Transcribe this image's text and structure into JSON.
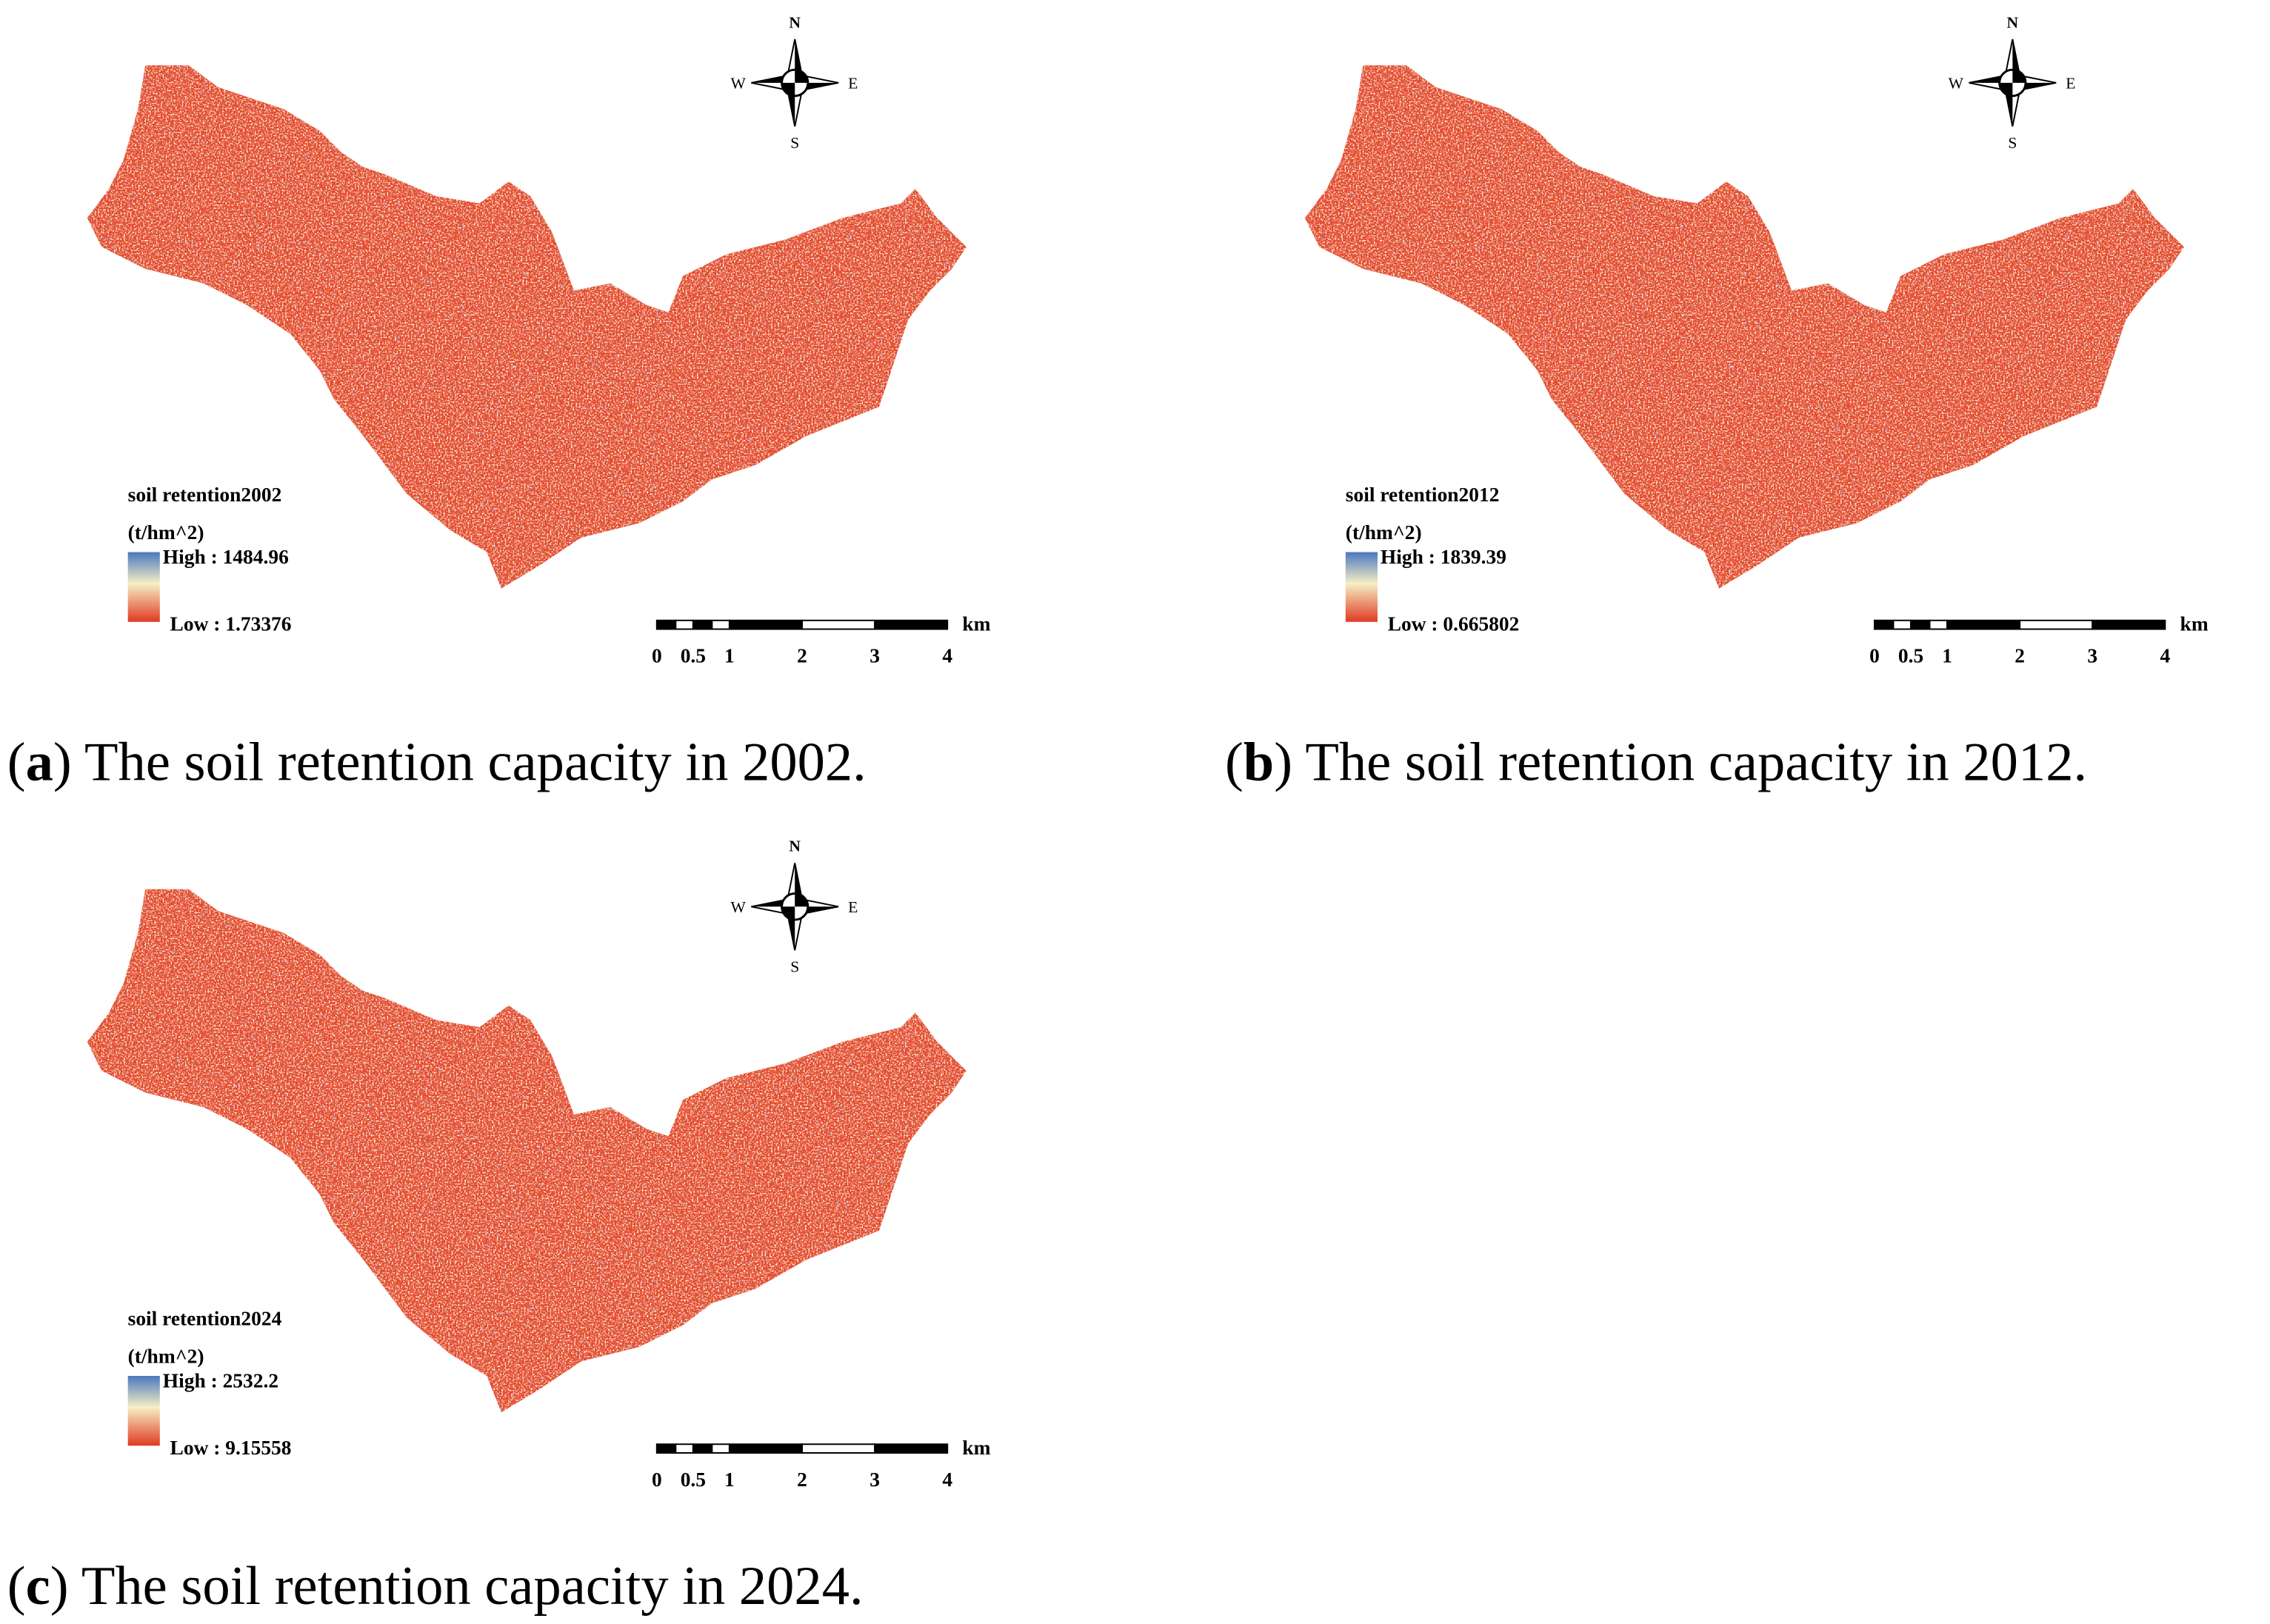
{
  "compass": {
    "n": "N",
    "s": "S",
    "w": "W",
    "e": "E"
  },
  "scale_bar": {
    "labels": [
      "0",
      "0.5",
      "1",
      "2",
      "3",
      "4"
    ],
    "unit": "km"
  },
  "panels": [
    {
      "legend_title": "soil retention2002",
      "legend_unit": "(t/hm^2)",
      "high": "High : 1484.96",
      "low": "Low : 1.73376",
      "caption_parts": [
        "(",
        "a",
        ") The soil retention capacity in 2002."
      ]
    },
    {
      "legend_title": "soil retention2012",
      "legend_unit": "(t/hm^2)",
      "high": "High : 1839.39",
      "low": "Low : 0.665802",
      "caption_parts": [
        "(",
        "b",
        ") The soil retention capacity in 2012."
      ]
    },
    {
      "legend_title": "soil retention2024",
      "legend_unit": "(t/hm^2)",
      "high": "High : 2532.2",
      "low": "Low : 9.15558",
      "caption_parts": [
        "(",
        "c",
        ") The soil retention capacity in 2024."
      ]
    }
  ]
}
